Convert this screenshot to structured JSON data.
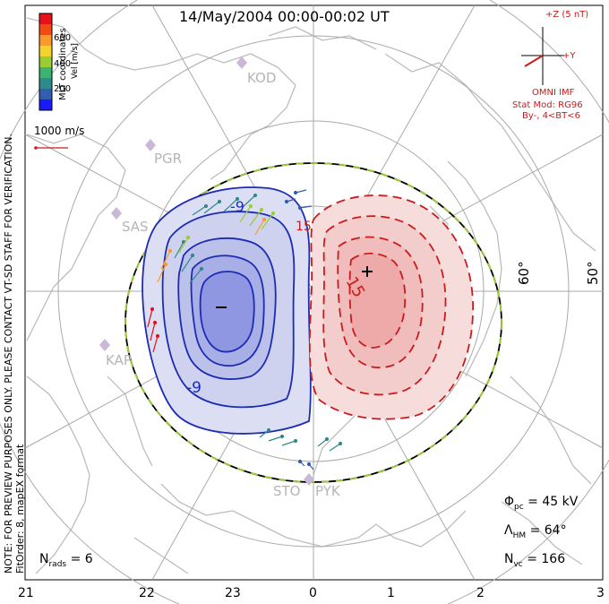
{
  "title": "14/May/2004 00:00-00:02 UT",
  "side_note": "NOTE: FOR PREVIEW PURPOSES ONLY. PLEASE CONTACT VT-SD STAFF FOR VERIFICATION.",
  "side_fit": "FitOrder: 8, mapEX format",
  "coords": "MLT coordinates",
  "colorbar": {
    "label": "Vel [m/s]",
    "ticks": [
      "600",
      "400",
      "200"
    ],
    "colors": [
      "#e8101b",
      "#f24b12",
      "#f99a2a",
      "#f4d42a",
      "#9acd32",
      "#3cb371",
      "#2e8b8b",
      "#2f5fae",
      "#1a1aff"
    ]
  },
  "ref_vector": "1000 m/s",
  "imf": {
    "z_label": "+Z (5 nT)",
    "y_label": "+Y",
    "source": "OMNI IMF",
    "stat_mod": "Stat Mod: RG96",
    "condition": "By-, 4<BT<6"
  },
  "stations": [
    "KOD",
    "PGR",
    "SAS",
    "KAP",
    "STO",
    "PYK"
  ],
  "lat_labels": [
    "60°",
    "50°"
  ],
  "contours": {
    "neg": [
      "-9",
      "-9"
    ],
    "pos": [
      "15",
      "15"
    ],
    "neg_sign": "-",
    "pos_sign": "+"
  },
  "stats": {
    "phi_pc": "= 45 kV",
    "lambda_hm": "= 64°",
    "n_vc": "= 166",
    "n_rads": "= 6"
  },
  "mlt_axis": [
    "21",
    "22",
    "23",
    "0",
    "1",
    "2",
    "3"
  ],
  "colors": {
    "neg": "#1d2bb5",
    "pos": "#cc1a1a",
    "grid": "#aaaaaa",
    "coast": "#bdbdbd",
    "hmb": "#9acd32"
  }
}
